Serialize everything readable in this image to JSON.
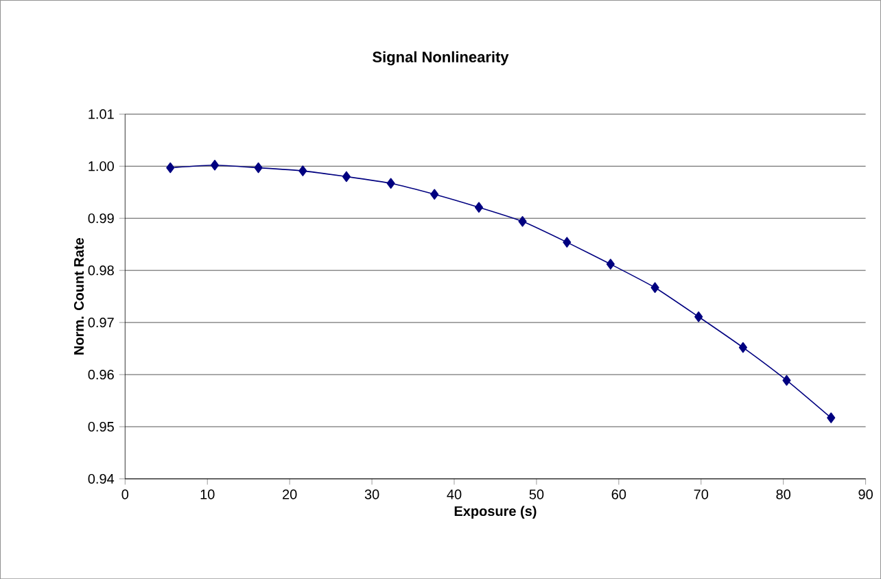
{
  "chart_data": {
    "type": "line",
    "title": "Signal Nonlinearity",
    "xlabel": "Exposure (s)",
    "ylabel": "Norm. Count Rate",
    "series": [
      {
        "color": "#000080",
        "x": [
          5.5,
          10.9,
          16.2,
          21.6,
          26.9,
          32.3,
          37.6,
          43.0,
          48.3,
          53.7,
          59.0,
          64.4,
          69.7,
          75.1,
          80.4,
          85.8
        ],
        "values": [
          0.9997,
          1.0002,
          0.9997,
          0.9991,
          0.998,
          0.9967,
          0.9946,
          0.9921,
          0.9894,
          0.9854,
          0.9812,
          0.9767,
          0.9711,
          0.9652,
          0.9589,
          0.9517
        ]
      }
    ],
    "xlim": [
      0,
      90
    ],
    "xticks": [
      0,
      10,
      20,
      30,
      40,
      50,
      60,
      70,
      80,
      90
    ],
    "ylim": [
      0.94,
      1.01
    ],
    "yticks": [
      {
        "value": 0.94,
        "label": "0.94"
      },
      {
        "value": 0.95,
        "label": "0.95"
      },
      {
        "value": 0.96,
        "label": "0.96"
      },
      {
        "value": 0.97,
        "label": "0.97"
      },
      {
        "value": 0.98,
        "label": "0.98"
      },
      {
        "value": 0.99,
        "label": "0.99"
      },
      {
        "value": 1.0,
        "label": "1.00"
      },
      {
        "value": 1.01,
        "label": "1.01"
      }
    ],
    "grid": "y",
    "marker": "diamond",
    "line_style": "solid"
  }
}
